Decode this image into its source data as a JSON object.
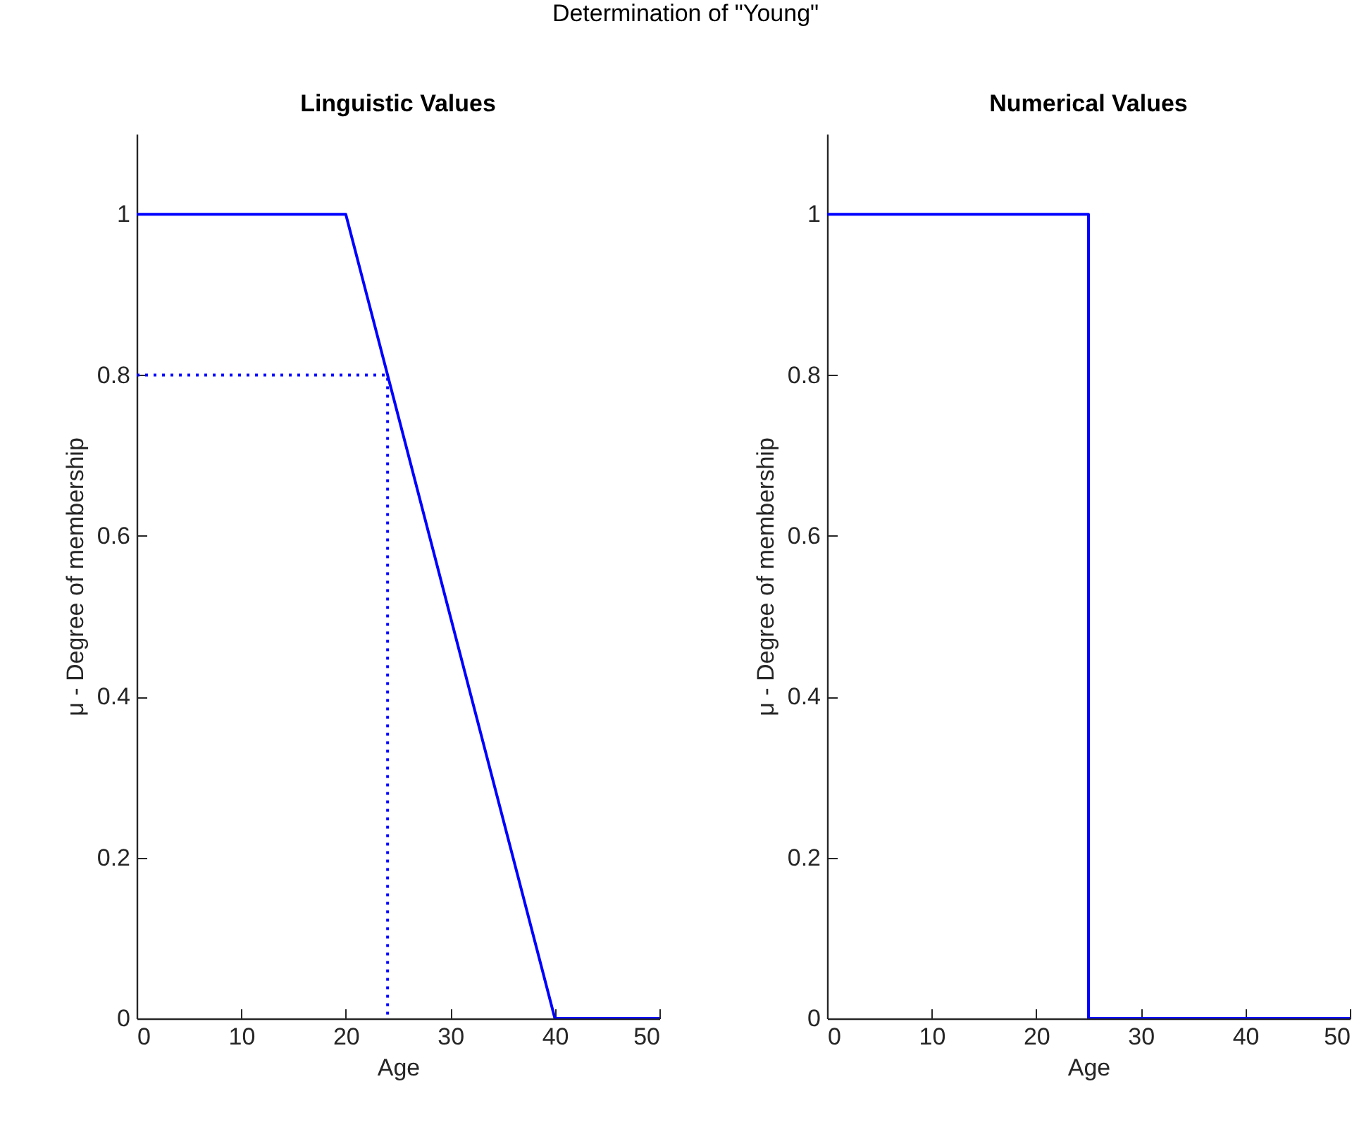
{
  "chart_data": [
    {
      "type": "line",
      "title": "Linguistic Values",
      "annotations": [
        "Determination of \"Young\""
      ],
      "xlabel": "Age",
      "ylabel": "μ - Degree of membership",
      "xlim": [
        0,
        50
      ],
      "xticks": [
        0,
        10,
        20,
        30,
        40,
        50
      ],
      "ylim": [
        0,
        1.1
      ],
      "yticks": [
        0,
        0.2,
        0.4,
        0.6,
        0.8,
        1
      ],
      "grid": false,
      "line_style": "solid",
      "series": [
        {
          "color": "#0000ff",
          "x": [
            0,
            20,
            40,
            50
          ],
          "values": [
            1,
            1,
            0,
            0
          ]
        },
        {
          "color": "#0000ff",
          "x": [
            0,
            24,
            24
          ],
          "values": [
            0.8,
            0.8,
            0
          ],
          "line_style": "dotted"
        }
      ]
    },
    {
      "type": "line",
      "title": "Numerical Values",
      "xlabel": "Age",
      "ylabel": "μ - Degree of membership",
      "xlim": [
        0,
        50
      ],
      "xticks": [
        0,
        10,
        20,
        30,
        40,
        50
      ],
      "ylim": [
        0,
        1.1
      ],
      "yticks": [
        0,
        0.2,
        0.4,
        0.6,
        0.8,
        1
      ],
      "grid": false,
      "line_style": "solid",
      "series": [
        {
          "color": "#0000ff",
          "x": [
            0,
            25,
            25,
            50
          ],
          "values": [
            1,
            1,
            0,
            0
          ]
        }
      ]
    }
  ]
}
